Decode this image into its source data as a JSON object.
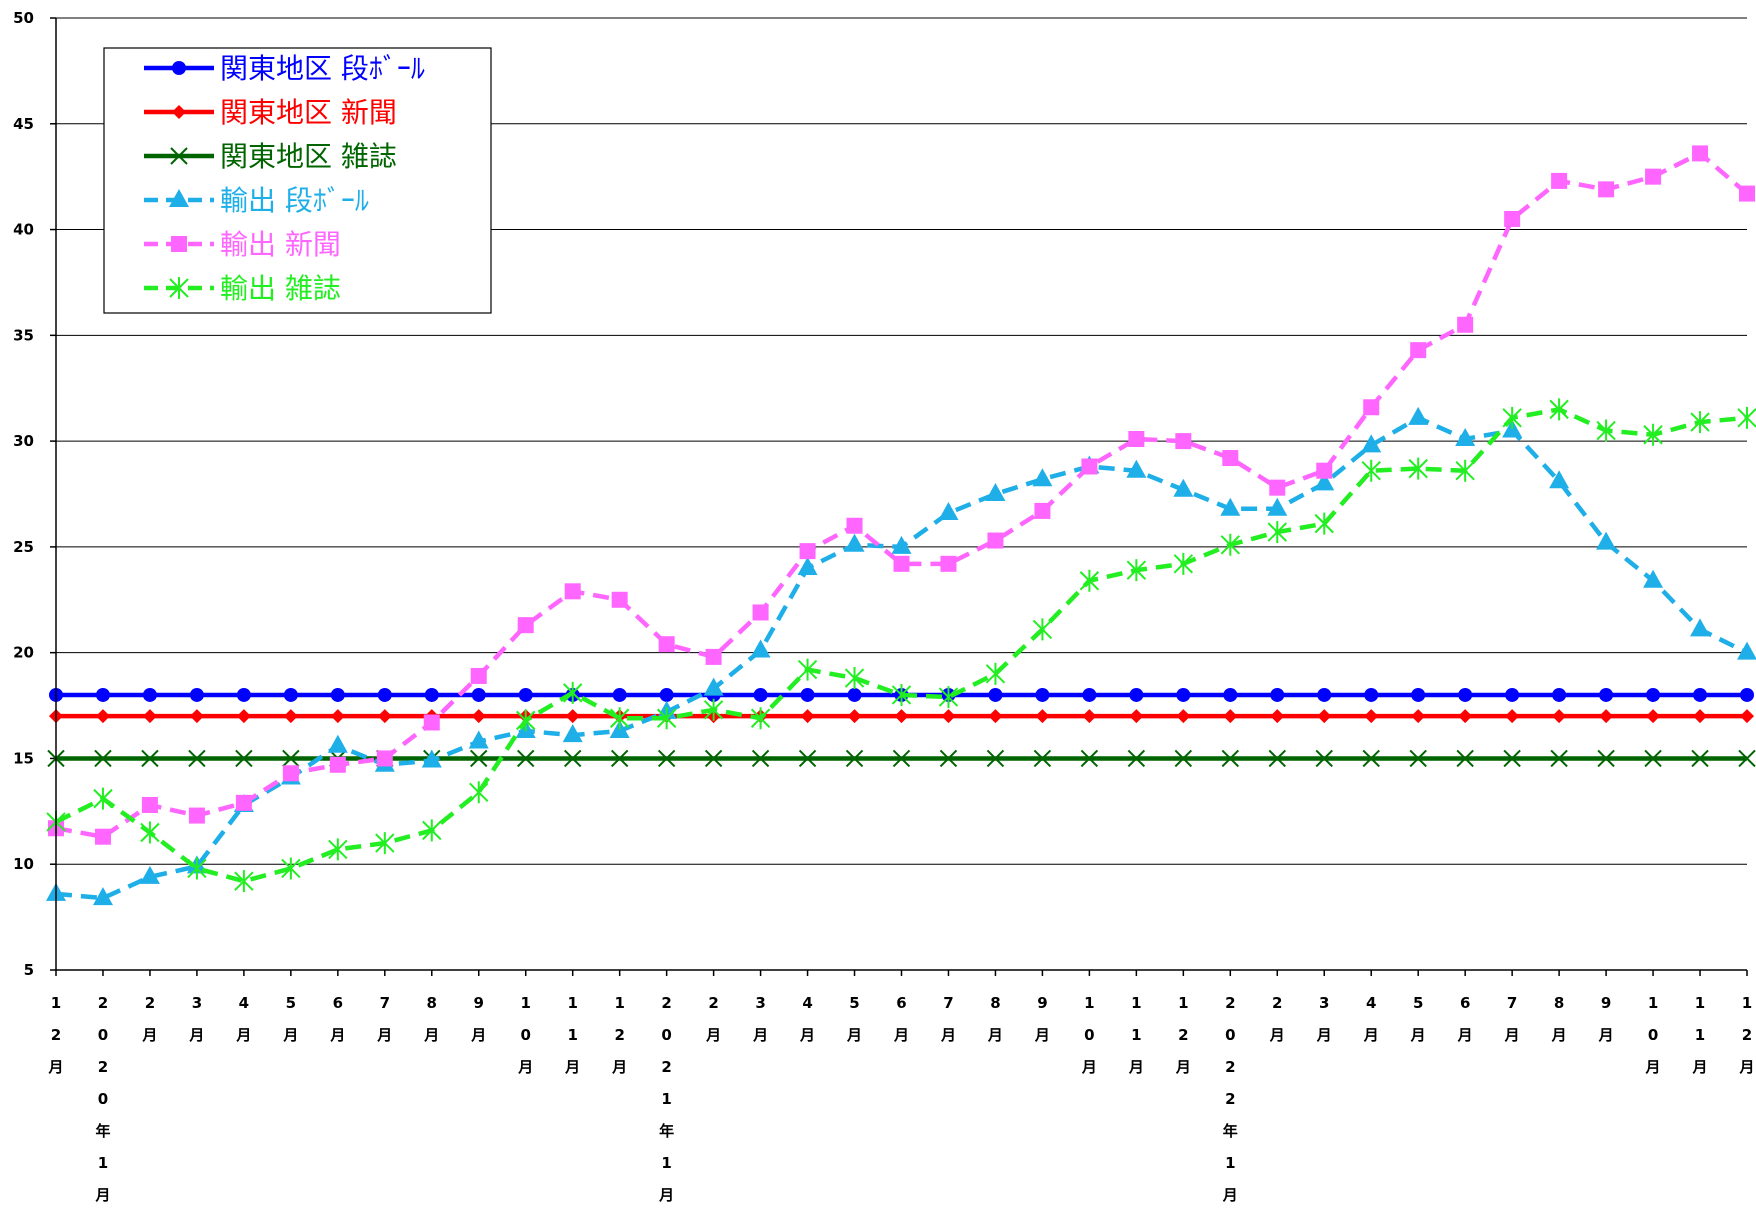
{
  "chart_data": {
    "type": "line",
    "title": "",
    "xlabel": "",
    "ylabel": "",
    "ylim": [
      5,
      50
    ],
    "yticks": [
      5,
      10,
      15,
      20,
      25,
      30,
      35,
      40,
      45,
      50
    ],
    "grid": "horizontal",
    "legend_position": "top-left",
    "categories": [
      "12月",
      "2020年1月",
      "2月",
      "3月",
      "4月",
      "5月",
      "6月",
      "7月",
      "8月",
      "9月",
      "10月",
      "11月",
      "12月",
      "2021年1月",
      "2月",
      "3月",
      "4月",
      "5月",
      "6月",
      "7月",
      "8月",
      "9月",
      "10月",
      "11月",
      "12月",
      "2022年1月",
      "2月",
      "3月",
      "4月",
      "5月",
      "6月",
      "7月",
      "8月",
      "9月",
      "10月",
      "11月",
      "12月"
    ],
    "series": [
      {
        "name": "関東地区 段ﾎﾞｰﾙ",
        "color": "#0000ff",
        "line": "solid",
        "marker": "circle",
        "values": [
          18,
          18,
          18,
          18,
          18,
          18,
          18,
          18,
          18,
          18,
          18,
          18,
          18,
          18,
          18,
          18,
          18,
          18,
          18,
          18,
          18,
          18,
          18,
          18,
          18,
          18,
          18,
          18,
          18,
          18,
          18,
          18,
          18,
          18,
          18,
          18,
          18
        ]
      },
      {
        "name": "関東地区 新聞",
        "color": "#ff0000",
        "line": "solid",
        "marker": "diamond",
        "values": [
          17,
          17,
          17,
          17,
          17,
          17,
          17,
          17,
          17,
          17,
          17,
          17,
          17,
          17,
          17,
          17,
          17,
          17,
          17,
          17,
          17,
          17,
          17,
          17,
          17,
          17,
          17,
          17,
          17,
          17,
          17,
          17,
          17,
          17,
          17,
          17,
          17
        ]
      },
      {
        "name": "関東地区 雑誌",
        "color": "#006400",
        "line": "solid",
        "marker": "x",
        "values": [
          15,
          15,
          15,
          15,
          15,
          15,
          15,
          15,
          15,
          15,
          15,
          15,
          15,
          15,
          15,
          15,
          15,
          15,
          15,
          15,
          15,
          15,
          15,
          15,
          15,
          15,
          15,
          15,
          15,
          15,
          15,
          15,
          15,
          15,
          15,
          15,
          15
        ]
      },
      {
        "name": "輸出 段ﾎﾞｰﾙ",
        "color": "#1eaee8",
        "line": "dashed",
        "marker": "triangle",
        "values": [
          8.6,
          8.4,
          9.4,
          9.9,
          12.8,
          14.1,
          15.6,
          14.7,
          14.9,
          15.8,
          16.3,
          16.1,
          16.3,
          17.2,
          18.3,
          20.1,
          24.0,
          25.1,
          25.0,
          26.6,
          27.5,
          28.2,
          28.8,
          28.6,
          27.7,
          26.8,
          26.8,
          28.0,
          29.8,
          31.1,
          30.1,
          30.5,
          28.1,
          25.2,
          23.4,
          21.1,
          20.0
        ]
      },
      {
        "name": "輸出 新聞",
        "color": "#ff66ff",
        "line": "dashed",
        "marker": "square",
        "values": [
          11.7,
          11.3,
          12.8,
          12.3,
          12.9,
          14.3,
          14.7,
          15.0,
          16.7,
          18.9,
          21.3,
          22.9,
          22.5,
          20.4,
          19.8,
          21.9,
          24.8,
          26.0,
          24.2,
          24.2,
          25.3,
          26.7,
          28.8,
          30.1,
          30.0,
          29.2,
          27.8,
          28.6,
          31.6,
          34.3,
          35.5,
          40.5,
          42.3,
          41.9,
          42.5,
          43.6,
          41.7
        ]
      },
      {
        "name": "輸出 雑誌",
        "color": "#22ee22",
        "line": "dashed",
        "marker": "asterisk",
        "values": [
          12.0,
          13.1,
          11.5,
          9.8,
          9.2,
          9.8,
          10.7,
          11.0,
          11.6,
          13.4,
          16.8,
          18.1,
          16.9,
          16.9,
          17.3,
          16.9,
          19.2,
          18.8,
          18.0,
          17.9,
          19.0,
          21.1,
          23.4,
          23.9,
          24.2,
          25.1,
          25.7,
          26.1,
          28.6,
          28.7,
          28.6,
          31.1,
          31.5,
          30.5,
          30.3,
          30.9,
          31.1
        ]
      }
    ]
  }
}
